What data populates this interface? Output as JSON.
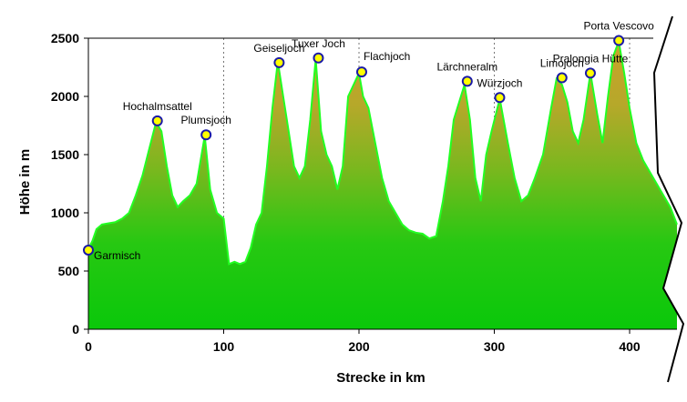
{
  "chart_data": {
    "type": "area",
    "title": "",
    "xlabel": "Strecke in km",
    "ylabel": "Höhe in m",
    "xlim": [
      0,
      435
    ],
    "ylim": [
      0,
      2500
    ],
    "x_ticks": [
      0,
      100,
      200,
      300,
      400
    ],
    "y_ticks": [
      0,
      500,
      1000,
      1500,
      2000,
      2500
    ],
    "grid": "x-dashed",
    "colors": {
      "fill_top": "#c8a02a",
      "fill_bottom": "#0ec80e",
      "line": "#22ff22",
      "marker_fill": "#ffff00",
      "marker_edge": "#1a1aa8"
    },
    "profile": {
      "x": [
        0,
        3,
        6,
        10,
        15,
        20,
        25,
        30,
        35,
        40,
        45,
        50,
        54,
        58,
        62,
        66,
        70,
        75,
        80,
        86,
        90,
        95,
        100,
        104,
        108,
        112,
        116,
        120,
        124,
        128,
        132,
        136,
        140,
        144,
        148,
        152,
        156,
        160,
        164,
        168,
        172,
        176,
        180,
        184,
        188,
        192,
        196,
        200,
        203,
        207,
        212,
        217,
        222,
        227,
        232,
        237,
        242,
        247,
        252,
        257,
        262,
        266,
        270,
        274,
        278,
        282,
        286,
        290,
        294,
        298,
        304,
        310,
        315,
        320,
        325,
        330,
        336,
        342,
        346,
        350,
        354,
        358,
        362,
        366,
        371,
        376,
        380,
        384,
        388,
        392,
        396,
        400,
        405,
        410,
        415,
        420,
        425,
        430,
        435
      ],
      "y": [
        690,
        760,
        860,
        900,
        910,
        920,
        950,
        1000,
        1150,
        1320,
        1550,
        1780,
        1700,
        1400,
        1150,
        1050,
        1100,
        1150,
        1250,
        1660,
        1200,
        1000,
        950,
        560,
        580,
        560,
        580,
        700,
        900,
        1000,
        1400,
        1900,
        2300,
        2000,
        1700,
        1400,
        1300,
        1400,
        1800,
        2320,
        1700,
        1500,
        1400,
        1200,
        1400,
        2000,
        2100,
        2200,
        2000,
        1900,
        1600,
        1300,
        1100,
        1000,
        900,
        850,
        830,
        820,
        780,
        800,
        1100,
        1400,
        1800,
        1950,
        2100,
        1800,
        1300,
        1100,
        1500,
        1700,
        1980,
        1600,
        1300,
        1100,
        1150,
        1300,
        1500,
        1900,
        2150,
        2100,
        1950,
        1700,
        1600,
        1800,
        2200,
        1850,
        1600,
        2000,
        2350,
        2470,
        2200,
        1900,
        1600,
        1450,
        1350,
        1250,
        1150,
        1050,
        900
      ]
    },
    "waypoints": [
      {
        "name": "Garmisch",
        "km": 0,
        "elev": 680,
        "label_pos": "right"
      },
      {
        "name": "Hochalmsattel",
        "km": 51,
        "elev": 1790,
        "label_pos": "above"
      },
      {
        "name": "Plumsjoch",
        "km": 87,
        "elev": 1670,
        "label_pos": "above"
      },
      {
        "name": "Geiseljoch",
        "km": 141,
        "elev": 2290,
        "label_pos": "above"
      },
      {
        "name": "Tuxer Joch",
        "km": 170,
        "elev": 2330,
        "label_pos": "above"
      },
      {
        "name": "Flachjoch",
        "km": 202,
        "elev": 2210,
        "label_pos": "above-right"
      },
      {
        "name": "Lärchneralm",
        "km": 280,
        "elev": 2130,
        "label_pos": "above"
      },
      {
        "name": "Würzjoch",
        "km": 304,
        "elev": 1990,
        "label_pos": "above"
      },
      {
        "name": "Limojoch",
        "km": 350,
        "elev": 2160,
        "label_pos": "above"
      },
      {
        "name": "Pralongia Hütte",
        "km": 371,
        "elev": 2200,
        "label_pos": "above"
      },
      {
        "name": "Porta Vescovo",
        "km": 392,
        "elev": 2480,
        "label_pos": "above"
      }
    ],
    "axis_break": "right"
  }
}
